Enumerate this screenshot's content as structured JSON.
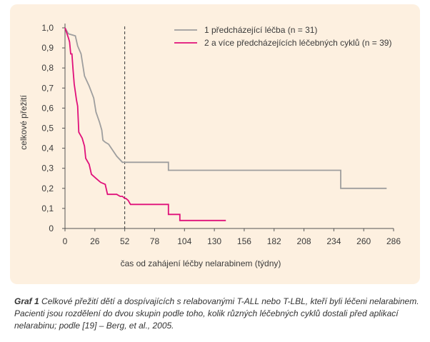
{
  "chart_data": {
    "type": "line",
    "subtype": "step",
    "ylabel": "celkové přežití",
    "xlabel": "čas od zahájení léčby nelarabinem (týdny)",
    "xlim": [
      0,
      286
    ],
    "ylim": [
      0,
      1.0
    ],
    "x_ticks": [
      0,
      26,
      52,
      78,
      104,
      130,
      156,
      182,
      208,
      234,
      260,
      286
    ],
    "y_ticks": [
      0,
      0.1,
      0.2,
      0.3,
      0.4,
      0.5,
      0.6,
      0.7,
      0.8,
      0.9,
      1.0
    ],
    "y_tick_labels": [
      "0",
      "0,1",
      "0,2",
      "0,3",
      "0,4",
      "0,5",
      "0,6",
      "0,7",
      "0,8",
      "0,9",
      "1,0"
    ],
    "vline_x": 52,
    "grid": false,
    "legend_position": "top-right",
    "series": [
      {
        "name": "1 předcházející léčba (n = 31)",
        "color": "#9e9e9e",
        "points": [
          [
            0,
            1.0
          ],
          [
            3,
            0.97
          ],
          [
            9,
            0.96
          ],
          [
            11,
            0.91
          ],
          [
            14,
            0.87
          ],
          [
            17,
            0.76
          ],
          [
            21,
            0.71
          ],
          [
            25,
            0.65
          ],
          [
            27,
            0.58
          ],
          [
            30,
            0.53
          ],
          [
            32,
            0.49
          ],
          [
            33,
            0.44
          ],
          [
            35,
            0.43
          ],
          [
            38,
            0.42
          ],
          [
            45,
            0.36
          ],
          [
            50,
            0.33
          ],
          [
            52,
            0.33
          ],
          [
            60,
            0.33
          ],
          [
            70,
            0.33
          ],
          [
            90,
            0.33
          ],
          [
            90,
            0.29
          ],
          [
            180,
            0.29
          ],
          [
            225,
            0.29
          ],
          [
            240,
            0.29
          ],
          [
            240,
            0.2
          ],
          [
            255,
            0.2
          ],
          [
            270,
            0.2
          ],
          [
            280,
            0.2
          ]
        ]
      },
      {
        "name": "2 a více předcházejících léčebných cyklů (n = 39)",
        "color": "#e0107a",
        "points": [
          [
            0,
            1.0
          ],
          [
            3,
            0.95
          ],
          [
            4,
            0.93
          ],
          [
            5,
            0.87
          ],
          [
            6,
            0.87
          ],
          [
            7,
            0.79
          ],
          [
            8,
            0.72
          ],
          [
            9,
            0.68
          ],
          [
            10,
            0.64
          ],
          [
            11,
            0.61
          ],
          [
            12,
            0.48
          ],
          [
            15,
            0.45
          ],
          [
            17,
            0.41
          ],
          [
            18,
            0.35
          ],
          [
            19,
            0.34
          ],
          [
            21,
            0.32
          ],
          [
            23,
            0.27
          ],
          [
            25,
            0.26
          ],
          [
            27,
            0.25
          ],
          [
            31,
            0.23
          ],
          [
            35,
            0.22
          ],
          [
            37,
            0.17
          ],
          [
            45,
            0.17
          ],
          [
            48,
            0.16
          ],
          [
            50,
            0.16
          ],
          [
            52,
            0.15
          ],
          [
            53,
            0.15
          ],
          [
            55,
            0.14
          ],
          [
            57,
            0.12
          ],
          [
            60,
            0.12
          ],
          [
            70,
            0.12
          ],
          [
            87,
            0.12
          ],
          [
            90,
            0.12
          ],
          [
            90,
            0.07
          ],
          [
            95,
            0.07
          ],
          [
            100,
            0.07
          ],
          [
            100,
            0.04
          ],
          [
            130,
            0.04
          ],
          [
            140,
            0.04
          ]
        ]
      }
    ]
  },
  "caption": {
    "label": "Graf 1",
    "text": "Celkové přežití dětí a dospívajících s relabovanými T-ALL nebo T-LBL, kteří byli léčeni nelarabinem. Pacienti jsou rozdělení do dvou skupin podle toho, kolik různých léčebných cyklů dostali před aplikací nelarabinu; podle [19] – Berg, et al., 2005."
  }
}
